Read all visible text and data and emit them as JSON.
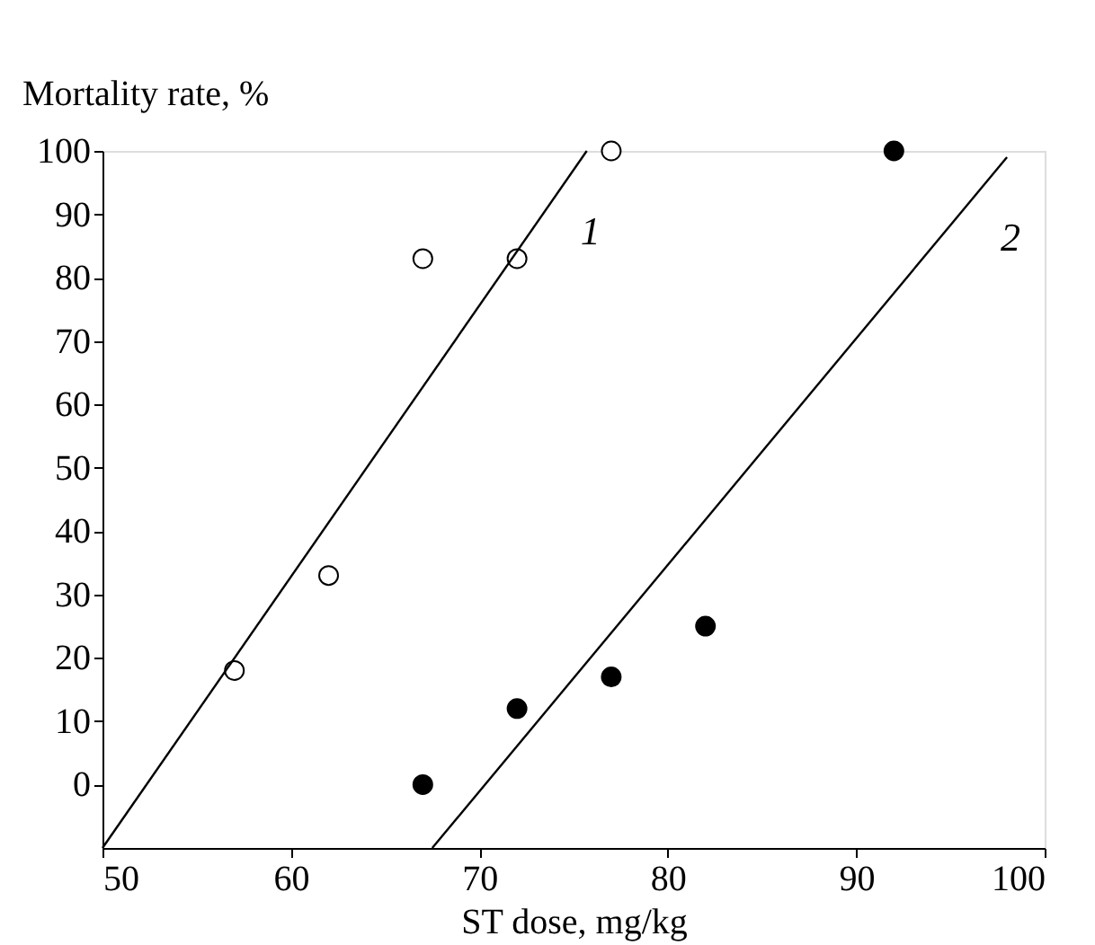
{
  "chart_data": {
    "type": "scatter",
    "xlabel": "ST dose, mg/kg",
    "ylabel": "Mortality rate, %",
    "xlim": [
      50,
      100
    ],
    "xticks": [
      50,
      60,
      70,
      80,
      90,
      100
    ],
    "ylim": [
      -10,
      100
    ],
    "yticks": [
      0,
      10,
      20,
      30,
      40,
      50,
      60,
      70,
      80,
      90,
      100
    ],
    "grid": false,
    "series": [
      {
        "marker": "circle",
        "color": "#ffffff",
        "x": [
          57,
          62,
          67,
          72,
          77
        ],
        "values": [
          18,
          33,
          83,
          83,
          100
        ]
      },
      {
        "marker": "circle",
        "color": "#000000",
        "x": [
          67,
          72,
          77,
          82,
          92
        ],
        "values": [
          0,
          12,
          17,
          25,
          100
        ]
      },
      {
        "type": "line",
        "color": "#000000",
        "x": [
          50,
          75.7
        ],
        "values": [
          -10,
          100
        ]
      },
      {
        "type": "line",
        "color": "#000000",
        "x": [
          67.5,
          98
        ],
        "values": [
          -10,
          99
        ]
      }
    ],
    "annotations": [
      "1",
      "2"
    ]
  }
}
